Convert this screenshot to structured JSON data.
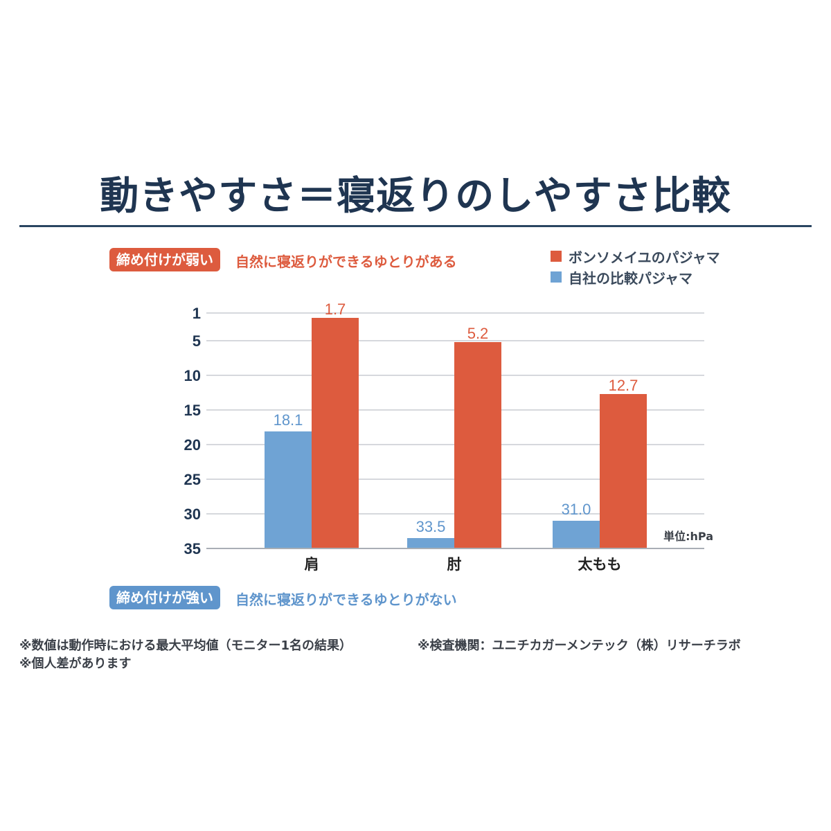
{
  "title": "動きやすさ＝寝返りのしやすさ比較",
  "top_badge": {
    "label": "締め付けが弱い",
    "note": "自然に寝返りができるゆとりがある"
  },
  "bottom_badge": {
    "label": "締め付けが強い",
    "note": "自然に寝返りができるゆとりがない"
  },
  "colors": {
    "orange": "#dd5b3e",
    "blue": "#6fa3d4",
    "navy": "#1f3551",
    "grid": "#c8ccd2"
  },
  "legend": [
    {
      "label": "ボンソメイユのパジャマ",
      "color": "#dd5b3e"
    },
    {
      "label": "自社の比較パジャマ",
      "color": "#6fa3d4"
    }
  ],
  "unit_label": "単位:hPa",
  "footnotes": {
    "line1_left": "※数値は動作時における最大平均値（モニター1名の結果）",
    "line1_right": "※検査機関：ユニチカガーメンテック（株）リサーチラボ",
    "line2": "※個人差があります"
  },
  "chart_data": {
    "type": "bar",
    "categories": [
      "肩",
      "肘",
      "太もも"
    ],
    "series": [
      {
        "name": "自社の比較パジャマ",
        "values": [
          18.1,
          33.5,
          31.0
        ],
        "labels": [
          "18.1",
          "33.5",
          "31.0"
        ],
        "color": "#6fa3d4"
      },
      {
        "name": "ボンソメイユのパジャマ",
        "values": [
          1.7,
          5.2,
          12.7
        ],
        "labels": [
          "1.7",
          "5.2",
          "12.7"
        ],
        "color": "#dd5b3e"
      }
    ],
    "yticks": [
      1,
      5,
      10,
      15,
      20,
      25,
      30,
      35
    ],
    "ylim": [
      1,
      35
    ],
    "y_inverted": true,
    "grid": true,
    "legend_position": "top-right"
  }
}
